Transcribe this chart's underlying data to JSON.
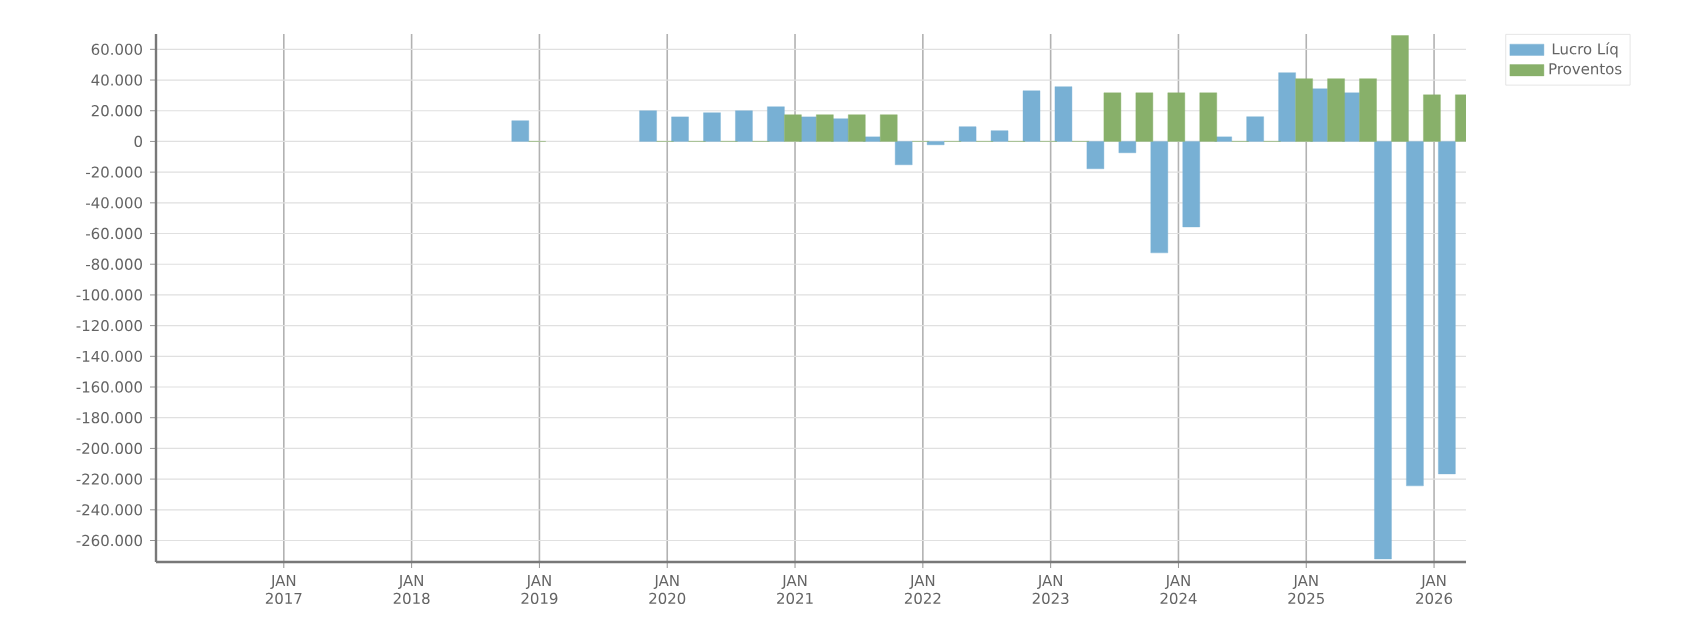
{
  "chart_data": {
    "type": "bar",
    "x": [
      "2018-12",
      "2019-12",
      "2020-03",
      "2020-06",
      "2020-09",
      "2020-12",
      "2021-03",
      "2021-06",
      "2021-09",
      "2021-12",
      "2022-03",
      "2022-06",
      "2022-09",
      "2022-12",
      "2023-03",
      "2023-06",
      "2023-09",
      "2023-12",
      "2024-03",
      "2024-06",
      "2024-09",
      "2024-12",
      "2025-03",
      "2025-06",
      "2025-09",
      "2025-12",
      "2026-03"
    ],
    "series": [
      {
        "name": "Lucro Líq",
        "color": "#78b0d4",
        "values": [
          13500,
          20000,
          16000,
          18700,
          20000,
          22600,
          16000,
          14800,
          3000,
          -15200,
          -2200,
          9600,
          7000,
          33000,
          35700,
          -17800,
          -7400,
          -72600,
          -55700,
          3000,
          16100,
          44800,
          34300,
          31700,
          -272000,
          -224400,
          -216600
        ]
      },
      {
        "name": "Proventos",
        "color": "#88b06a",
        "values": [
          0,
          0,
          0,
          0,
          0,
          17400,
          17400,
          17400,
          17400,
          0,
          0,
          0,
          0,
          0,
          0,
          31700,
          31700,
          31700,
          31700,
          0,
          0,
          40900,
          40900,
          40900,
          69000,
          30400,
          30400
        ]
      }
    ],
    "xlim": [
      "2016-01",
      "2026-04"
    ],
    "xticks": [
      {
        "value": "2017-01",
        "label": "JAN 2017"
      },
      {
        "value": "2018-01",
        "label": "JAN 2018"
      },
      {
        "value": "2019-01",
        "label": "JAN 2019"
      },
      {
        "value": "2020-01",
        "label": "JAN 2020"
      },
      {
        "value": "2021-01",
        "label": "JAN 2021"
      },
      {
        "value": "2022-01",
        "label": "JAN 2022"
      },
      {
        "value": "2023-01",
        "label": "JAN 2023"
      },
      {
        "value": "2024-01",
        "label": "JAN 2024"
      },
      {
        "value": "2025-01",
        "label": "JAN 2025"
      },
      {
        "value": "2026-01",
        "label": "JAN 2026"
      }
    ],
    "ylim": [
      -274000,
      70000
    ],
    "yticks": [
      {
        "value": -260000,
        "label": "-260.000"
      },
      {
        "value": -240000,
        "label": "-240.000"
      },
      {
        "value": -220000,
        "label": "-220.000"
      },
      {
        "value": -200000,
        "label": "-200.000"
      },
      {
        "value": -180000,
        "label": "-180.000"
      },
      {
        "value": -160000,
        "label": "-160.000"
      },
      {
        "value": -140000,
        "label": "-140.000"
      },
      {
        "value": -120000,
        "label": "-120.000"
      },
      {
        "value": -100000,
        "label": "-100.000"
      },
      {
        "value": -80000,
        "label": "-80.000"
      },
      {
        "value": -60000,
        "label": "-60.000"
      },
      {
        "value": -40000,
        "label": "-40.000"
      },
      {
        "value": -20000,
        "label": "-20.000"
      },
      {
        "value": 0,
        "label": "0"
      },
      {
        "value": 20000,
        "label": "20.000"
      },
      {
        "value": 40000,
        "label": "40.000"
      },
      {
        "value": 60000,
        "label": "60.000"
      }
    ],
    "grid": true,
    "legend": "top right"
  }
}
